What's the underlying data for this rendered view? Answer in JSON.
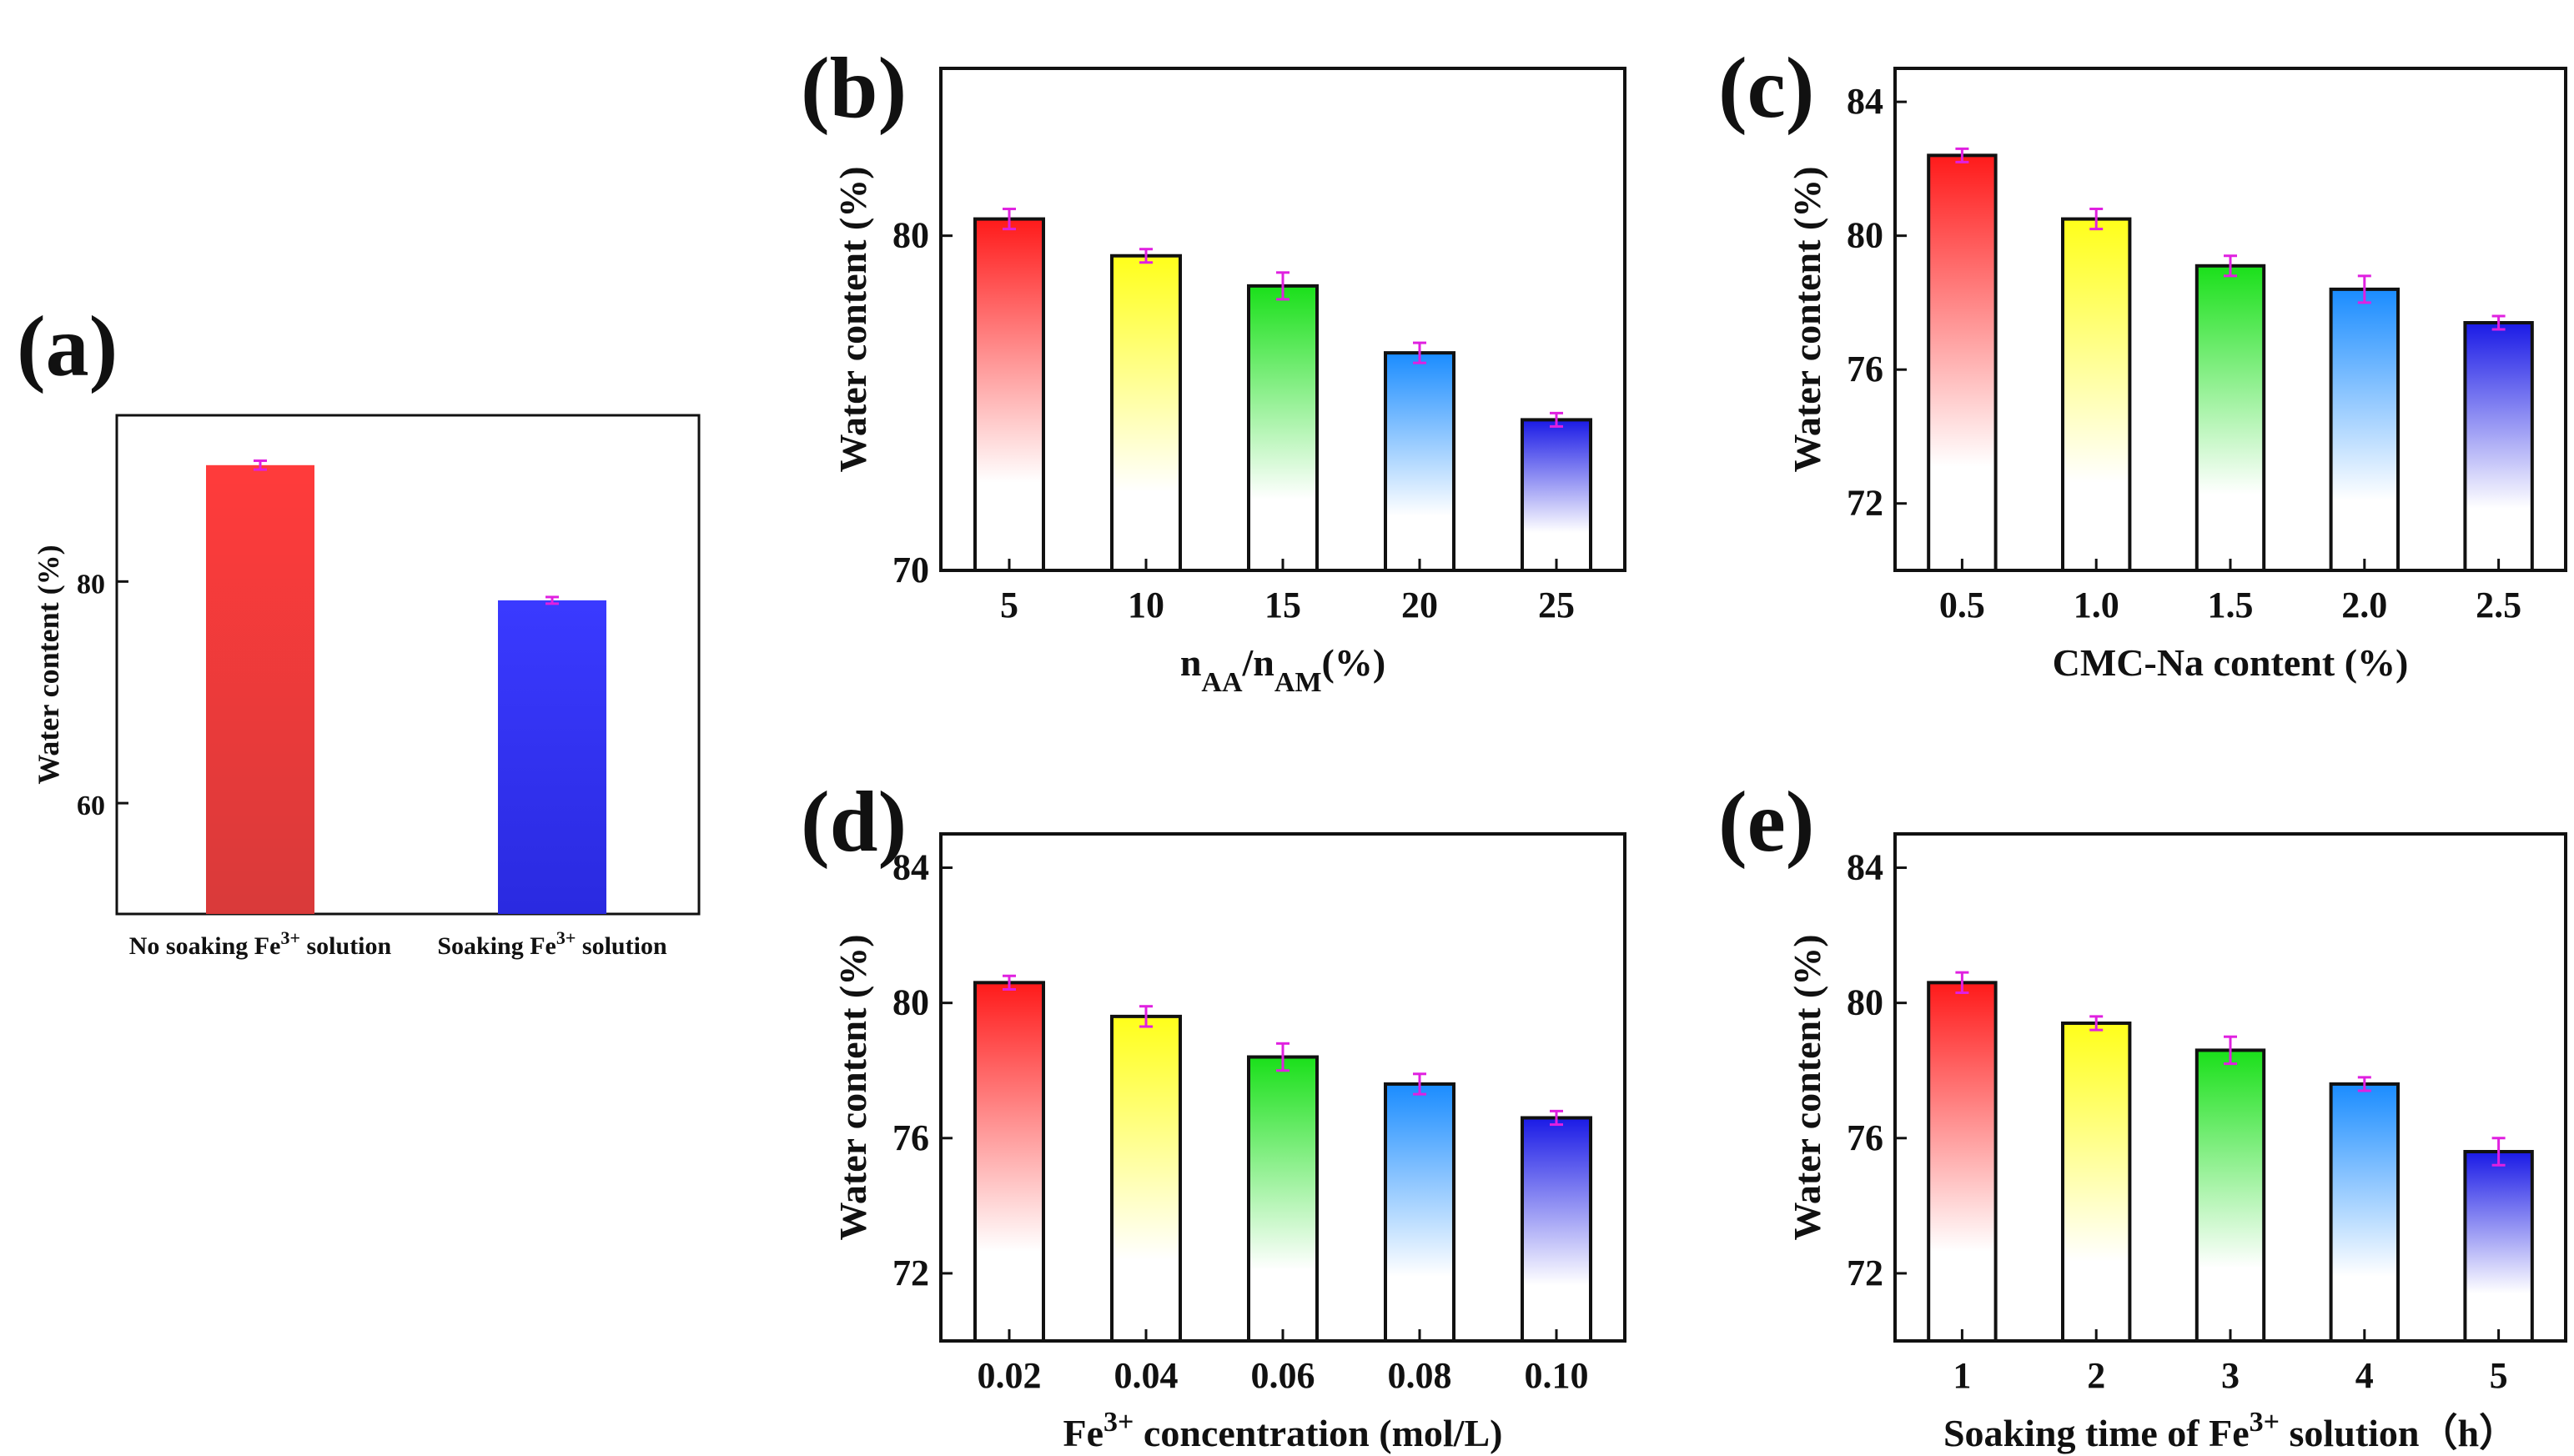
{
  "chart_data": [
    {
      "id": "a",
      "panel_label": "(a)",
      "type": "bar",
      "categories": [
        "No soaking Fe³⁺ solution",
        "Soaking Fe³⁺ solution"
      ],
      "category_parts": [
        [
          "No soaking Fe",
          "3+",
          " solution"
        ],
        [
          "Soaking Fe",
          "3+",
          " solution"
        ]
      ],
      "values": [
        90.5,
        78.3
      ],
      "errors": [
        0.4,
        0.3
      ],
      "ylabel": "Water content (%)",
      "xlabel": "",
      "ylim": [
        50,
        95
      ],
      "yticks": [
        60,
        80
      ],
      "bar_colors": [
        [
          "#d93a3a",
          "#ff3b3b"
        ],
        [
          "#2a2ae0",
          "#3a3aff"
        ]
      ]
    },
    {
      "id": "b",
      "panel_label": "(b)",
      "type": "bar",
      "categories": [
        "5",
        "10",
        "15",
        "20",
        "25"
      ],
      "values": [
        80.5,
        79.4,
        78.5,
        76.5,
        74.5
      ],
      "errors": [
        0.3,
        0.2,
        0.4,
        0.3,
        0.2
      ],
      "ylabel": "Water content (%)",
      "xlabel_parts": [
        "n",
        "AA",
        "/n",
        "AM",
        "(%)"
      ],
      "ylim": [
        70,
        85
      ],
      "yticks": [
        70,
        80
      ],
      "bar_colors": [
        "#ff1a1a",
        "#ffff1a",
        "#1ae01a",
        "#1a8cff",
        "#1a1ae6"
      ]
    },
    {
      "id": "c",
      "panel_label": "(c)",
      "type": "bar",
      "categories": [
        "0.5",
        "1.0",
        "1.5",
        "2.0",
        "2.5"
      ],
      "values": [
        82.4,
        80.5,
        79.1,
        78.4,
        77.4
      ],
      "errors": [
        0.2,
        0.3,
        0.3,
        0.4,
        0.2
      ],
      "ylabel": "Water content (%)",
      "xlabel": "CMC-Na content (%)",
      "ylim": [
        70,
        85
      ],
      "yticks": [
        72,
        76,
        80,
        84
      ],
      "bar_colors": [
        "#ff1a1a",
        "#ffff1a",
        "#1ae01a",
        "#1a8cff",
        "#1a1ae6"
      ]
    },
    {
      "id": "d",
      "panel_label": "(d)",
      "type": "bar",
      "categories": [
        "0.02",
        "0.04",
        "0.06",
        "0.08",
        "0.10"
      ],
      "values": [
        80.6,
        79.6,
        78.4,
        77.6,
        76.6
      ],
      "errors": [
        0.2,
        0.3,
        0.4,
        0.3,
        0.2
      ],
      "ylabel": "Water content (%)",
      "xlabel_parts": [
        "Fe",
        "3+",
        " concentration (mol/L)"
      ],
      "ylim": [
        70,
        85
      ],
      "yticks": [
        72,
        76,
        80,
        84
      ],
      "bar_colors": [
        "#ff1a1a",
        "#ffff1a",
        "#1ae01a",
        "#1a8cff",
        "#1a1ae6"
      ]
    },
    {
      "id": "e",
      "panel_label": "(e)",
      "type": "bar",
      "categories": [
        "1",
        "2",
        "3",
        "4",
        "5"
      ],
      "values": [
        80.6,
        79.4,
        78.6,
        77.6,
        75.6
      ],
      "errors": [
        0.3,
        0.2,
        0.4,
        0.2,
        0.4
      ],
      "ylabel": "Water content (%)",
      "xlabel_parts": [
        "Soaking time of Fe",
        "3+",
        " solution（h）"
      ],
      "ylim": [
        70,
        85
      ],
      "yticks": [
        72,
        76,
        80,
        84
      ],
      "bar_colors": [
        "#ff1a1a",
        "#ffff1a",
        "#1ae01a",
        "#1a8cff",
        "#1a1ae6"
      ]
    }
  ]
}
